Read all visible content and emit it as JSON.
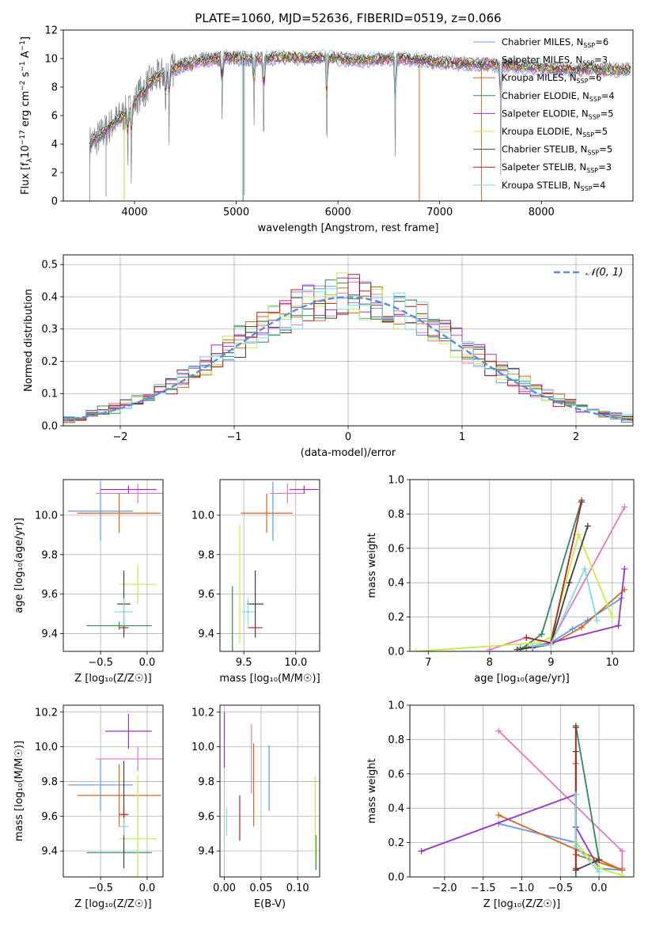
{
  "figure_title": "PLATE=1060, MJD=52636, FIBERID=0519, z=0.066",
  "colors": {
    "chabrier_miles": "#6495ed",
    "salpeter_miles": "#e377c2",
    "kroupa_miles": "#d2691e",
    "chabrier_elodie": "#2e8b57",
    "salpeter_elodie": "#9932cc",
    "kroupa_elodie": "#c0f040",
    "chabrier_stelib": "#404040",
    "salpeter_stelib": "#b22222",
    "kroupa_stelib": "#7fdbe0",
    "data": "#808080"
  },
  "chart_data": [
    {
      "id": "spectrum",
      "type": "line",
      "xlabel": "wavelength [Angstrom, rest frame]",
      "ylabel_text": "Flux [f",
      "ylabel_sub": "λ",
      "ylabel_mid": "10",
      "ylabel_sup": "−17",
      "ylabel_rest": " erg cm",
      "ylabel_sup2": "−2",
      "ylabel_rest2": " s",
      "ylabel_sup3": "−1",
      "ylabel_rest3": " A",
      "ylabel_sup4": "−1",
      "ylabel_end": "]",
      "xlim": [
        3300,
        8900
      ],
      "ylim": [
        0,
        12
      ],
      "xticks": [
        "4000",
        "5000",
        "6000",
        "7000",
        "8000"
      ],
      "yticks": [
        "0",
        "2",
        "4",
        "6",
        "8",
        "10",
        "12"
      ],
      "legend": [
        {
          "name": "Chabrier MILES, N",
          "sub": "SSP",
          "suffix": "=6",
          "color_key": "chabrier_miles"
        },
        {
          "name": "Salpeter MILES, N",
          "sub": "SSP",
          "suffix": "=3",
          "color_key": "salpeter_miles"
        },
        {
          "name": "Kroupa MILES, N",
          "sub": "SSP",
          "suffix": "=6",
          "color_key": "kroupa_miles"
        },
        {
          "name": "Chabrier ELODIE, N",
          "sub": "SSP",
          "suffix": "=4",
          "color_key": "chabrier_elodie"
        },
        {
          "name": "Salpeter ELODIE, N",
          "sub": "SSP",
          "suffix": "=5",
          "color_key": "salpeter_elodie"
        },
        {
          "name": "Kroupa ELODIE, N",
          "sub": "SSP",
          "suffix": "=5",
          "color_key": "kroupa_elodie"
        },
        {
          "name": "Chabrier STELIB, N",
          "sub": "SSP",
          "suffix": "=5",
          "color_key": "chabrier_stelib"
        },
        {
          "name": "Salpeter STELIB, N",
          "sub": "SSP",
          "suffix": "=3",
          "color_key": "salpeter_stelib"
        },
        {
          "name": "Kroupa STELIB, N",
          "sub": "SSP",
          "suffix": "=4",
          "color_key": "kroupa_stelib"
        }
      ],
      "continuum_x": [
        3550,
        3650,
        3750,
        3850,
        3950,
        4050,
        4150,
        4300,
        4500,
        4700,
        4900,
        5100,
        5300,
        5500,
        5700,
        5900,
        6100,
        6300,
        6500,
        6700,
        6900,
        7100,
        7300,
        7500,
        7700,
        7900,
        8100,
        8300,
        8500,
        8700,
        8880
      ],
      "continuum_y": [
        4.0,
        4.5,
        5.2,
        5.8,
        6.3,
        7.5,
        8.3,
        9.0,
        9.6,
        9.9,
        10.1,
        10.0,
        10.0,
        10.1,
        10.0,
        10.1,
        9.9,
        9.9,
        10.0,
        10.0,
        9.8,
        9.7,
        9.6,
        9.6,
        9.5,
        9.4,
        9.3,
        9.2,
        9.3,
        9.2,
        9.2
      ]
    },
    {
      "id": "residuals",
      "type": "histogram",
      "xlabel": "(data-model)/error",
      "ylabel": "Normed distribution",
      "xlim": [
        -2.5,
        2.5
      ],
      "ylim": [
        0,
        0.53
      ],
      "xticks": [
        "−2",
        "−1",
        "0",
        "1",
        "2"
      ],
      "yticks": [
        "0.0",
        "0.1",
        "0.2",
        "0.3",
        "0.4",
        "0.5"
      ],
      "gaussian_label": "𝒩(0, 1)",
      "bin_width": 0.1
    },
    {
      "id": "age_vs_Z",
      "type": "errorbar",
      "xlabel": "Z [log₁₀(Z/Z☉)]",
      "ylabel": "age  [log₁₀(age/yr)]",
      "xlim": [
        -0.9,
        0.17
      ],
      "ylim": [
        9.31,
        10.18
      ],
      "xticks": [
        "−0.5",
        "0.0"
      ],
      "yticks": [
        "9.4",
        "9.6",
        "9.8",
        "10.0"
      ],
      "points": [
        {
          "key": "chabrier_miles",
          "x": -0.5,
          "xe": 0.35,
          "y": 10.02,
          "ye": 0.15
        },
        {
          "key": "salpeter_miles",
          "x": -0.1,
          "xe": 0.45,
          "y": 10.11,
          "ye": 0.05
        },
        {
          "key": "kroupa_miles",
          "x": -0.3,
          "xe": 0.45,
          "y": 10.01,
          "ye": 0.1
        },
        {
          "key": "chabrier_elodie",
          "x": -0.3,
          "xe": 0.35,
          "y": 9.44,
          "ye": 0.02
        },
        {
          "key": "salpeter_elodie",
          "x": -0.2,
          "xe": 0.3,
          "y": 10.13,
          "ye": 0.02
        },
        {
          "key": "kroupa_elodie",
          "x": -0.1,
          "xe": 0.2,
          "y": 9.65,
          "ye": 0.1
        },
        {
          "key": "chabrier_stelib",
          "x": -0.25,
          "xe": 0.07,
          "y": 9.55,
          "ye": 0.17
        },
        {
          "key": "salpeter_stelib",
          "x": -0.25,
          "xe": 0.05,
          "y": 9.43,
          "ye": 0.02
        },
        {
          "key": "kroupa_stelib",
          "x": -0.25,
          "xe": 0.1,
          "y": 9.51,
          "ye": 0.07
        }
      ]
    },
    {
      "id": "age_vs_mass",
      "type": "errorbar",
      "xlabel": "mass [log₁₀(M/M☉)]",
      "ylabel": "",
      "xlim": [
        9.27,
        10.23
      ],
      "ylim": [
        9.31,
        10.18
      ],
      "xticks": [
        "9.5",
        "10.0"
      ],
      "yticks": [
        "9.4",
        "9.6",
        "9.8",
        "10.0"
      ],
      "points": [
        {
          "key": "chabrier_miles",
          "x": 9.78,
          "xe": 0.0,
          "y": 10.02,
          "ye": 0.15
        },
        {
          "key": "salpeter_miles",
          "x": 9.92,
          "xe": 0.17,
          "y": 10.11,
          "ye": 0.05
        },
        {
          "key": "kroupa_miles",
          "x": 9.72,
          "xe": 0.25,
          "y": 10.01,
          "ye": 0.1
        },
        {
          "key": "chabrier_elodie",
          "x": 9.39,
          "xe": 0.0,
          "y": 9.44,
          "ye": 0.2
        },
        {
          "key": "salpeter_elodie",
          "x": 10.08,
          "xe": 0.14,
          "y": 10.13,
          "ye": 0.02
        },
        {
          "key": "kroupa_elodie",
          "x": 9.46,
          "xe": 0.0,
          "y": 9.65,
          "ye": 0.3
        },
        {
          "key": "chabrier_stelib",
          "x": 9.61,
          "xe": 0.08,
          "y": 9.55,
          "ye": 0.17
        },
        {
          "key": "salpeter_stelib",
          "x": 9.61,
          "xe": 0.07,
          "y": 9.43,
          "ye": 0.0
        },
        {
          "key": "kroupa_stelib",
          "x": 9.54,
          "xe": 0.06,
          "y": 9.51,
          "ye": 0.07
        }
      ]
    },
    {
      "id": "weight_vs_age",
      "type": "line",
      "xlabel": "age  [log₁₀(age/yr)]",
      "ylabel": "mass weight",
      "xlim": [
        6.7,
        10.35
      ],
      "ylim": [
        0,
        1.0
      ],
      "xticks": [
        "7",
        "8",
        "9",
        "10"
      ],
      "yticks": [
        "0.0",
        "0.2",
        "0.4",
        "0.6",
        "0.8",
        "1.0"
      ],
      "series": [
        {
          "key": "chabrier_miles",
          "x": [
            8.5,
            9.0,
            9.35,
            9.6,
            10.15
          ],
          "y": [
            0.02,
            0.05,
            0.13,
            0.18,
            0.31
          ]
        },
        {
          "key": "salpeter_miles",
          "x": [
            8.0,
            8.6,
            9.0,
            10.2
          ],
          "y": [
            0.01,
            0.08,
            0.05,
            0.84
          ]
        },
        {
          "key": "kroupa_miles",
          "x": [
            8.6,
            9.0,
            9.5,
            10.2
          ],
          "y": [
            0.02,
            0.04,
            0.14,
            0.36
          ]
        },
        {
          "key": "chabrier_elodie",
          "x": [
            8.5,
            8.85,
            9.5
          ],
          "y": [
            0.01,
            0.1,
            0.88
          ]
        },
        {
          "key": "salpeter_elodie",
          "x": [
            8.7,
            9.0,
            10.1,
            10.2
          ],
          "y": [
            0.02,
            0.05,
            0.15,
            0.48
          ]
        },
        {
          "key": "kroupa_elodie",
          "x": [
            6.8,
            8.8,
            9.0,
            9.45,
            10.0
          ],
          "y": [
            0.0,
            0.05,
            0.08,
            0.68,
            0.2
          ]
        },
        {
          "key": "chabrier_stelib",
          "x": [
            8.45,
            9.0,
            9.3,
            9.6
          ],
          "y": [
            0.01,
            0.04,
            0.4,
            0.73
          ]
        },
        {
          "key": "salpeter_stelib",
          "x": [
            8.6,
            9.0,
            9.5
          ],
          "y": [
            0.08,
            0.05,
            0.87
          ]
        },
        {
          "key": "kroupa_stelib",
          "x": [
            8.7,
            9.0,
            9.55,
            9.75
          ],
          "y": [
            0.03,
            0.04,
            0.48,
            0.18
          ]
        }
      ]
    },
    {
      "id": "mass_vs_Z",
      "type": "errorbar",
      "xlabel": "Z [log₁₀(Z/Z☉)]",
      "ylabel": "mass [log₁₀(M/M☉)]",
      "xlim": [
        -0.9,
        0.17
      ],
      "ylim": [
        9.25,
        10.24
      ],
      "xticks": [
        "−0.5",
        "0.0"
      ],
      "yticks": [
        "9.4",
        "9.6",
        "9.8",
        "10.0",
        "10.2"
      ],
      "points": [
        {
          "key": "chabrier_miles",
          "x": -0.5,
          "xe": 0.35,
          "y": 9.78,
          "ye": 0.15
        },
        {
          "key": "salpeter_miles",
          "x": -0.1,
          "xe": 0.45,
          "y": 9.93,
          "ye": 0.07
        },
        {
          "key": "kroupa_miles",
          "x": -0.3,
          "xe": 0.45,
          "y": 9.72,
          "ye": 0.18
        },
        {
          "key": "chabrier_elodie",
          "x": -0.3,
          "xe": 0.35,
          "y": 9.39,
          "ye": 0.0
        },
        {
          "key": "salpeter_elodie",
          "x": -0.2,
          "xe": 0.25,
          "y": 10.09,
          "ye": 0.1
        },
        {
          "key": "kroupa_elodie",
          "x": -0.1,
          "xe": 0.2,
          "y": 9.47,
          "ye": 0.37
        },
        {
          "key": "chabrier_stelib",
          "x": -0.25,
          "xe": 0.03,
          "y": 9.61,
          "ye": 0.31
        },
        {
          "key": "salpeter_stelib",
          "x": -0.25,
          "xe": 0.05,
          "y": 9.61,
          "ye": 0.04
        },
        {
          "key": "kroupa_stelib",
          "x": -0.25,
          "xe": 0.05,
          "y": 9.54,
          "ye": 0.05
        }
      ]
    },
    {
      "id": "mass_vs_ebv",
      "type": "errorbar",
      "xlabel": "E(B-V)",
      "ylabel": "",
      "xlim": [
        -0.006,
        0.13
      ],
      "ylim": [
        9.25,
        10.24
      ],
      "xticks": [
        "0.00",
        "0.05",
        "0.10"
      ],
      "yticks": [
        "9.4",
        "9.6",
        "9.8",
        "10.0",
        "10.2"
      ],
      "points": [
        {
          "key": "chabrier_miles",
          "x": 0.061,
          "xe": 0,
          "y": 9.82,
          "ye": 0.19
        },
        {
          "key": "salpeter_miles",
          "x": 0.037,
          "xe": 0,
          "y": 9.93,
          "ye": 0.2
        },
        {
          "key": "kroupa_miles",
          "x": 0.04,
          "xe": 0,
          "y": 9.78,
          "ye": 0.24
        },
        {
          "key": "chabrier_elodie",
          "x": 0.125,
          "xe": 0,
          "y": 9.39,
          "ye": 0.1
        },
        {
          "key": "salpeter_elodie",
          "x": 0.0,
          "xe": 0,
          "y": 10.04,
          "ye": 0.16
        },
        {
          "key": "kroupa_elodie",
          "x": 0.124,
          "xe": 0,
          "y": 9.58,
          "ye": 0.25
        },
        {
          "key": "chabrier_stelib",
          "x": 0.02,
          "xe": 0,
          "y": 9.59,
          "ye": 0.0
        },
        {
          "key": "salpeter_stelib",
          "x": 0.021,
          "xe": 0,
          "y": 9.59,
          "ye": 0.13
        },
        {
          "key": "kroupa_stelib",
          "x": 0.003,
          "xe": 0,
          "y": 9.57,
          "ye": 0.08
        }
      ]
    },
    {
      "id": "weight_vs_Z",
      "type": "line",
      "xlabel": "Z [log₁₀(Z/Z☉)]",
      "ylabel": "mass weight",
      "xlim": [
        -2.45,
        0.45
      ],
      "ylim": [
        0,
        1.0
      ],
      "xticks": [
        "−2.0",
        "−1.5",
        "−1.0",
        "−0.5",
        "0.0"
      ],
      "yticks": [
        "0.0",
        "0.2",
        "0.4",
        "0.6",
        "0.8",
        "1.0"
      ],
      "series": [
        {
          "key": "chabrier_miles",
          "x": [
            -1.3,
            -0.3,
            0.0,
            0.3
          ],
          "y": [
            0.31,
            0.2,
            0.05,
            0.04
          ]
        },
        {
          "key": "salpeter_miles",
          "x": [
            -1.3,
            0.3,
            0.3
          ],
          "y": [
            0.85,
            0.15,
            0.05
          ]
        },
        {
          "key": "kroupa_miles",
          "x": [
            -1.3,
            0.3,
            -0.3,
            -0.3
          ],
          "y": [
            0.36,
            0.04,
            0.13,
            0.66
          ]
        },
        {
          "key": "chabrier_elodie",
          "x": [
            -0.3,
            -0.3,
            0.0
          ],
          "y": [
            0.0,
            0.88,
            0.1
          ]
        },
        {
          "key": "salpeter_elodie",
          "x": [
            -2.3,
            -0.3,
            -0.3,
            0.0
          ],
          "y": [
            0.15,
            0.48,
            0.29,
            0.05
          ]
        },
        {
          "key": "kroupa_elodie",
          "x": [
            -0.3,
            0.0,
            0.3
          ],
          "y": [
            0.2,
            0.05,
            0.01
          ]
        },
        {
          "key": "chabrier_stelib",
          "x": [
            -0.3,
            -0.3,
            0.0
          ],
          "y": [
            0.73,
            0.04,
            0.1
          ]
        },
        {
          "key": "salpeter_stelib",
          "x": [
            -0.3,
            -0.3
          ],
          "y": [
            0.05,
            0.87
          ]
        },
        {
          "key": "kroupa_stelib",
          "x": [
            -0.3,
            -0.3,
            0.0
          ],
          "y": [
            0.48,
            0.18,
            0.03
          ]
        }
      ]
    }
  ]
}
